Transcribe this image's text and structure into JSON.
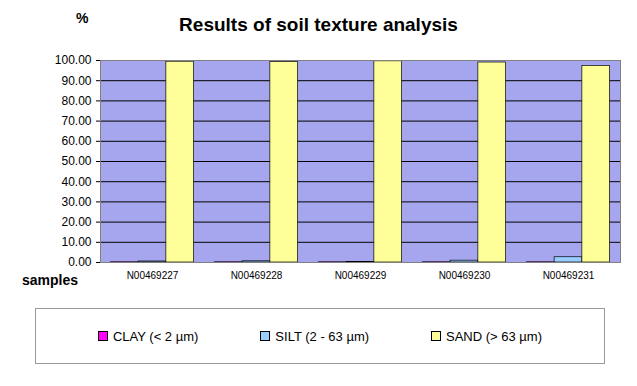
{
  "chart_data": {
    "type": "bar",
    "title": "Results of soil texture analysis",
    "x_label": "samples",
    "y_label": "%",
    "categories": [
      "N00469227",
      "N00469228",
      "N00469229",
      "N00469230",
      "N00469231"
    ],
    "series": [
      {
        "name": "CLAY (< 2 µm)",
        "color": "#ff00ff",
        "values": [
          0.1,
          0.1,
          0.1,
          0.1,
          0.1
        ]
      },
      {
        "name": "SILT (2 - 63 µm)",
        "color": "#99ccff",
        "values": [
          0.5,
          0.6,
          0.3,
          0.9,
          2.6
        ]
      },
      {
        "name": "SAND (> 63 µm)",
        "color": "#ffff99",
        "values": [
          99.4,
          99.3,
          99.6,
          99.0,
          97.3
        ]
      }
    ],
    "ylim": [
      0,
      100
    ],
    "yticks": [
      {
        "value": 0,
        "label": "0.00"
      },
      {
        "value": 10,
        "label": "10.00"
      },
      {
        "value": 20,
        "label": "20.00"
      },
      {
        "value": 30,
        "label": "30.00"
      },
      {
        "value": 40,
        "label": "40.00"
      },
      {
        "value": 50,
        "label": "50.00"
      },
      {
        "value": 60,
        "label": "60.00"
      },
      {
        "value": 70,
        "label": "70.00"
      },
      {
        "value": 80,
        "label": "80.00"
      },
      {
        "value": 90,
        "label": "90.00"
      },
      {
        "value": 100,
        "label": "100.00"
      }
    ],
    "grid": true,
    "legend": "bottom"
  }
}
